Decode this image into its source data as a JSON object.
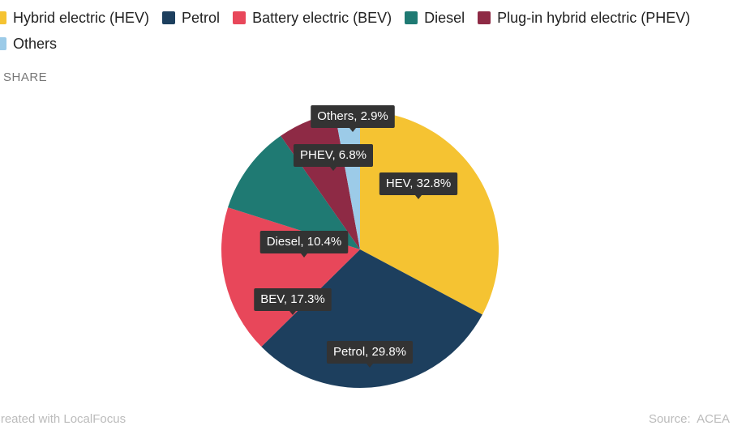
{
  "chart_data": {
    "type": "pie",
    "categories": [
      "Hybrid electric (HEV)",
      "Petrol",
      "Battery electric (BEV)",
      "Diesel",
      "Plug-in hybrid electric (PHEV)",
      "Others"
    ],
    "values": [
      32.8,
      29.8,
      17.3,
      10.4,
      6.8,
      2.9
    ],
    "value_labels": [
      "HEV, 32.8%",
      "Petrol, 29.8%",
      "BEV, 17.3%",
      "Diesel, 10.4%",
      "PHEV, 6.8%",
      "Others, 2.9%"
    ],
    "colors": [
      "#f5c332",
      "#1d3f5e",
      "#e8475a",
      "#1f7a73",
      "#8e2a45",
      "#9ccbe8"
    ],
    "subtitle": "SHARE",
    "credit": "Created with LocalFocus",
    "source": "Source:  ACEA"
  }
}
